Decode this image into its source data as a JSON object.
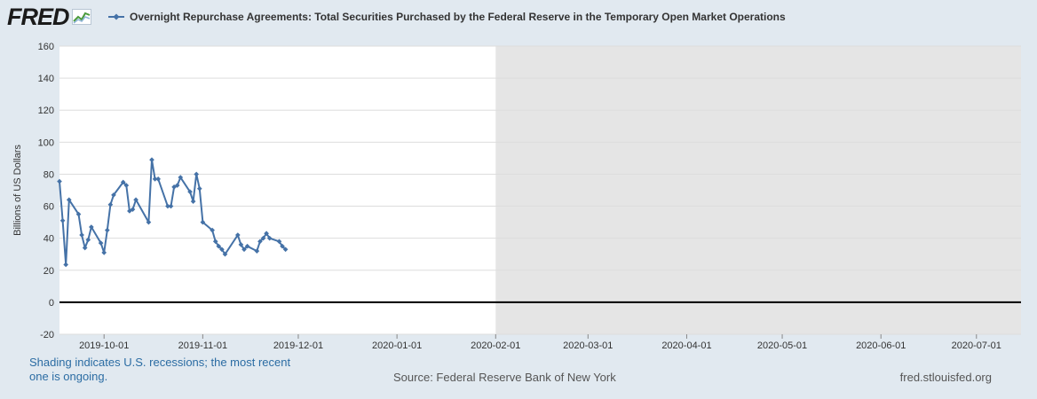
{
  "logo": {
    "text": "FRED",
    "icon": "fred-chart-logo-icon"
  },
  "colors": {
    "series": "#4572a7",
    "plot_bg": "#ffffff",
    "recession": "#e5e5e5",
    "page_bg": "#e1e9f0",
    "grid": "#dddddd",
    "zero_line": "#000000"
  },
  "footer": {
    "note": "Shading indicates U.S. recessions; the most recent one is ongoing.",
    "source": "Source: Federal Reserve Bank of New York",
    "site": "fred.stlouisfed.org"
  },
  "chart_data": {
    "type": "line",
    "title": "Overnight Repurchase Agreements: Total Securities Purchased by the Federal Reserve in the Temporary Open Market Operations",
    "ylabel": "Billions of US Dollars",
    "xlabel": "",
    "ylim": [
      -20,
      160
    ],
    "yticks": [
      -20,
      0,
      20,
      40,
      60,
      80,
      100,
      120,
      140,
      160
    ],
    "xlim": [
      "2019-09-17",
      "2020-07-15"
    ],
    "xticks": [
      {
        "date": "2019-10-01",
        "label": "2019-10-01"
      },
      {
        "date": "2019-11-01",
        "label": "2019-11-01"
      },
      {
        "date": "2019-12-01",
        "label": "2019-12-01"
      },
      {
        "date": "2020-01-01",
        "label": "2020-01-01"
      },
      {
        "date": "2020-02-01",
        "label": "2020-02-01"
      },
      {
        "date": "2020-03-01",
        "label": "2020-03-01"
      },
      {
        "date": "2020-04-01",
        "label": "2020-04-01"
      },
      {
        "date": "2020-05-01",
        "label": "2020-05-01"
      },
      {
        "date": "2020-06-01",
        "label": "2020-06-01"
      },
      {
        "date": "2020-07-01",
        "label": "2020-07-01"
      }
    ],
    "recession": {
      "start": "2020-02-01",
      "end": "2020-07-15"
    },
    "series": [
      {
        "name": "Overnight Repurchase Agreements: Total Securities Purchased by the Federal Reserve in the Temporary Open Market Operations",
        "segments": [
          {
            "dates": [
              "2019-09-17",
              "2019-09-18",
              "2019-09-19",
              "2019-09-20",
              "2019-09-23",
              "2019-09-24",
              "2019-09-25",
              "2019-09-26",
              "2019-09-27",
              "2019-09-30",
              "2019-10-01",
              "2019-10-02",
              "2019-10-03",
              "2019-10-04",
              "2019-10-07",
              "2019-10-08",
              "2019-10-09",
              "2019-10-10",
              "2019-10-11",
              "2019-10-15",
              "2019-10-16",
              "2019-10-17",
              "2019-10-18",
              "2019-10-21",
              "2019-10-22",
              "2019-10-23",
              "2019-10-24",
              "2019-10-25",
              "2019-10-28",
              "2019-10-29",
              "2019-10-30",
              "2019-10-31",
              "2019-11-01",
              "2019-11-04",
              "2019-11-05",
              "2019-11-06",
              "2019-11-07",
              "2019-11-08",
              "2019-11-12",
              "2019-11-13",
              "2019-11-14",
              "2019-11-15",
              "2019-11-18",
              "2019-11-19",
              "2019-11-20",
              "2019-11-21",
              "2019-11-22",
              "2019-11-25",
              "2019-11-26",
              "2019-11-27"
            ],
            "values": [
              75.5,
              51,
              23.5,
              64,
              55,
              42,
              34,
              39,
              47,
              37,
              31,
              45,
              61,
              67,
              75,
              73,
              57,
              58,
              64,
              50,
              89,
              77,
              77,
              60,
              60,
              72,
              73,
              78,
              69,
              63,
              80,
              71,
              50,
              45,
              38,
              35,
              33,
              30,
              42,
              36,
              33,
              35,
              32,
              38,
              40,
              43,
              40,
              38,
              35,
              33
            ]
          }
        ]
      }
    ]
  }
}
